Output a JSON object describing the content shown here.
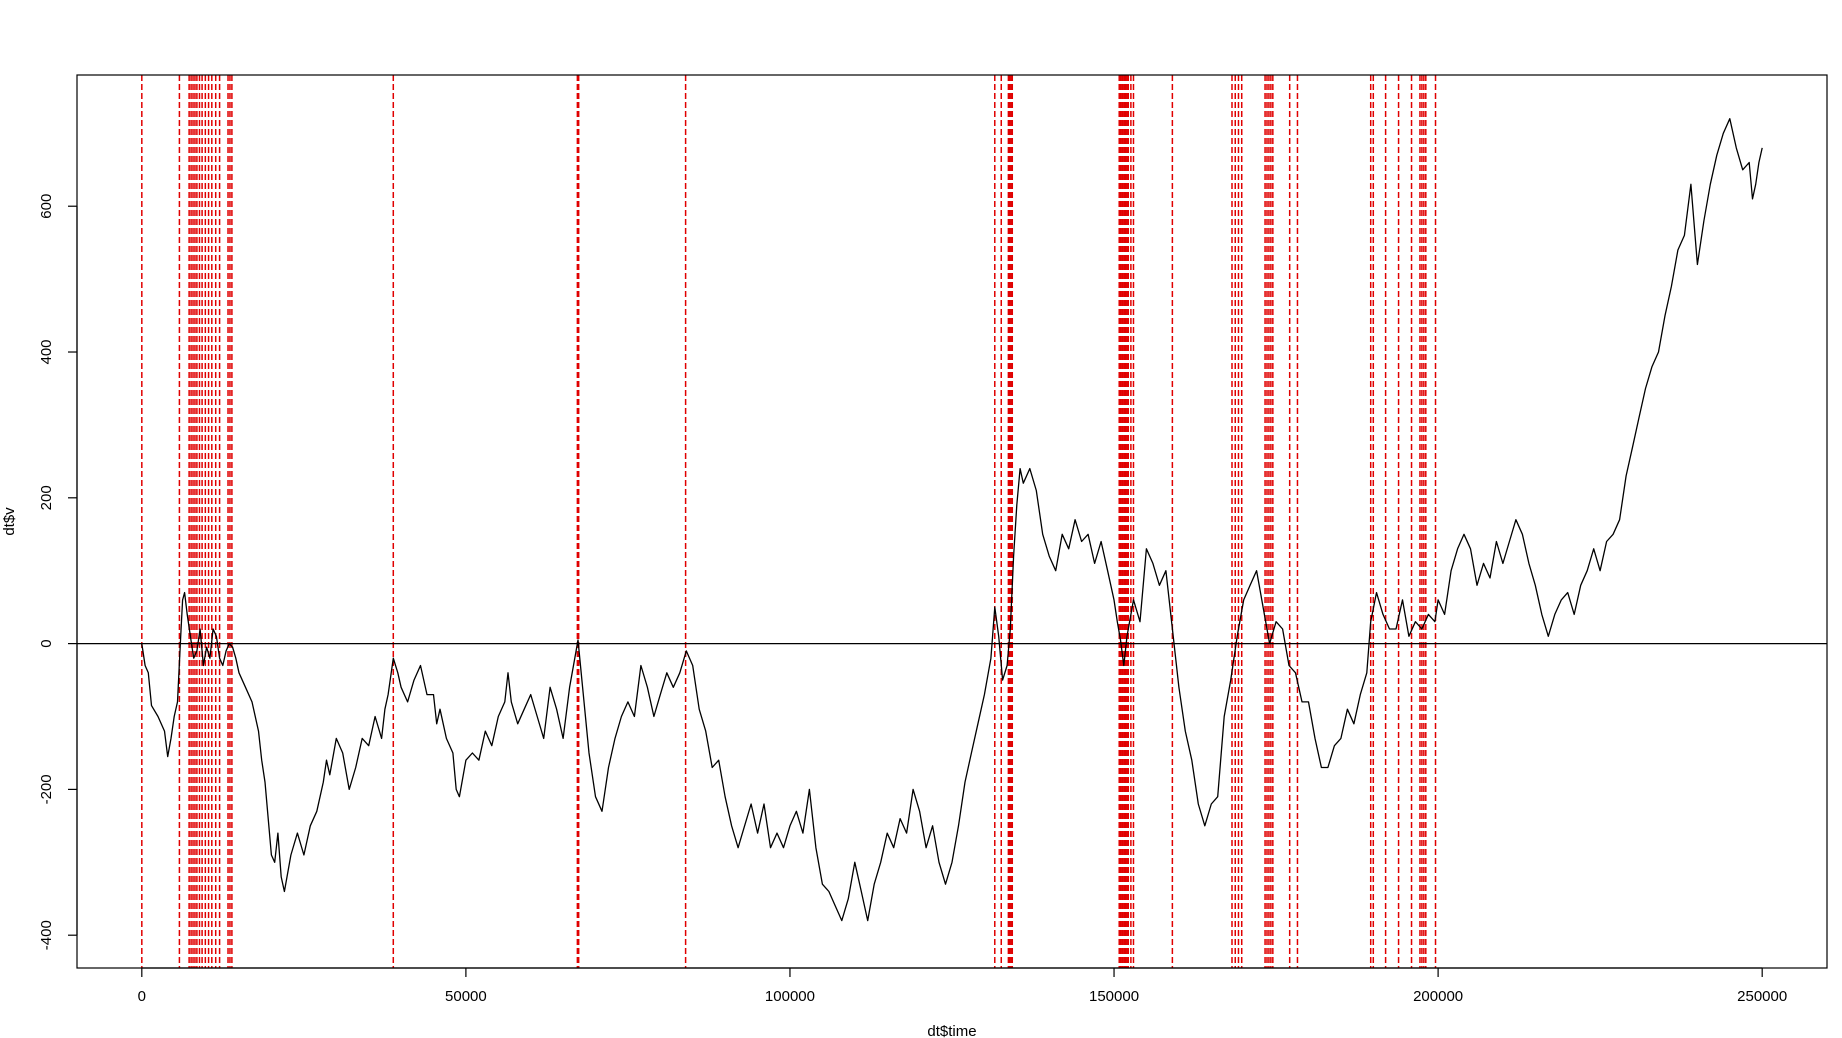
{
  "chart_data": {
    "type": "line",
    "xlabel": "dt$time",
    "ylabel": "dt$v",
    "xlim": [
      -10000,
      260000
    ],
    "ylim": [
      -445,
      780
    ],
    "x_ticks": [
      0,
      50000,
      100000,
      150000,
      200000,
      250000
    ],
    "x_tick_labels": [
      "0",
      "50000",
      "100000",
      "150000",
      "200000",
      "250000"
    ],
    "y_ticks": [
      -400,
      -200,
      0,
      200,
      400,
      600
    ],
    "y_tick_labels": [
      "-400",
      "-200",
      "0",
      "200",
      "400",
      "600"
    ],
    "grid": false,
    "hline": 0,
    "colors": {
      "series": "#000000",
      "vlines": "#e00000",
      "hline": "#000000"
    },
    "vlines_style": "dashed",
    "vlines_x": [
      0,
      5800,
      7300,
      7600,
      7900,
      8200,
      8500,
      8900,
      9300,
      9800,
      10300,
      10800,
      11400,
      12000,
      13300,
      13600,
      13900,
      38800,
      67200,
      67400,
      83900,
      131600,
      132600,
      133700,
      133900,
      134100,
      134300,
      150800,
      151000,
      151200,
      151400,
      151600,
      151800,
      152000,
      152200,
      152600,
      153000,
      159000,
      168200,
      168700,
      169200,
      169700,
      173300,
      173600,
      173900,
      174200,
      174500,
      177100,
      178300,
      189600,
      190000,
      191900,
      193900,
      195900,
      197200,
      197500,
      197800,
      198100,
      199600
    ],
    "series": [
      {
        "values": [
          [
            0,
            0
          ],
          [
            500,
            -30
          ],
          [
            1000,
            -40
          ],
          [
            1500,
            -85
          ],
          [
            2500,
            -100
          ],
          [
            3500,
            -120
          ],
          [
            4000,
            -155
          ],
          [
            4500,
            -130
          ],
          [
            5000,
            -100
          ],
          [
            5500,
            -80
          ],
          [
            6000,
            10
          ],
          [
            6300,
            60
          ],
          [
            6600,
            70
          ],
          [
            7000,
            40
          ],
          [
            7500,
            10
          ],
          [
            8000,
            -20
          ],
          [
            8500,
            -10
          ],
          [
            9000,
            20
          ],
          [
            9500,
            -30
          ],
          [
            10000,
            -5
          ],
          [
            10500,
            -20
          ],
          [
            11000,
            20
          ],
          [
            11500,
            10
          ],
          [
            12000,
            -20
          ],
          [
            12500,
            -30
          ],
          [
            13000,
            -10
          ],
          [
            13500,
            0
          ],
          [
            14000,
            -5
          ],
          [
            14500,
            -20
          ],
          [
            15000,
            -40
          ],
          [
            16000,
            -60
          ],
          [
            17000,
            -80
          ],
          [
            18000,
            -120
          ],
          [
            18500,
            -160
          ],
          [
            19000,
            -190
          ],
          [
            19500,
            -240
          ],
          [
            20000,
            -290
          ],
          [
            20500,
            -300
          ],
          [
            21000,
            -260
          ],
          [
            21500,
            -320
          ],
          [
            22000,
            -340
          ],
          [
            23000,
            -290
          ],
          [
            24000,
            -260
          ],
          [
            25000,
            -290
          ],
          [
            26000,
            -250
          ],
          [
            27000,
            -230
          ],
          [
            28000,
            -190
          ],
          [
            28500,
            -160
          ],
          [
            29000,
            -180
          ],
          [
            30000,
            -130
          ],
          [
            31000,
            -150
          ],
          [
            32000,
            -200
          ],
          [
            33000,
            -170
          ],
          [
            34000,
            -130
          ],
          [
            35000,
            -140
          ],
          [
            36000,
            -100
          ],
          [
            37000,
            -130
          ],
          [
            37500,
            -90
          ],
          [
            38000,
            -70
          ],
          [
            38800,
            -20
          ],
          [
            39500,
            -40
          ],
          [
            40000,
            -60
          ],
          [
            41000,
            -80
          ],
          [
            42000,
            -50
          ],
          [
            43000,
            -30
          ],
          [
            44000,
            -70
          ],
          [
            45000,
            -70
          ],
          [
            45500,
            -110
          ],
          [
            46000,
            -90
          ],
          [
            47000,
            -130
          ],
          [
            48000,
            -150
          ],
          [
            48500,
            -200
          ],
          [
            49000,
            -210
          ],
          [
            50000,
            -160
          ],
          [
            51000,
            -150
          ],
          [
            52000,
            -160
          ],
          [
            53000,
            -120
          ],
          [
            54000,
            -140
          ],
          [
            55000,
            -100
          ],
          [
            56000,
            -80
          ],
          [
            56500,
            -40
          ],
          [
            57000,
            -80
          ],
          [
            58000,
            -110
          ],
          [
            59000,
            -90
          ],
          [
            60000,
            -70
          ],
          [
            61000,
            -100
          ],
          [
            62000,
            -130
          ],
          [
            63000,
            -60
          ],
          [
            64000,
            -90
          ],
          [
            65000,
            -130
          ],
          [
            66000,
            -60
          ],
          [
            67000,
            -10
          ],
          [
            67300,
            5
          ],
          [
            68000,
            -60
          ],
          [
            69000,
            -150
          ],
          [
            70000,
            -210
          ],
          [
            71000,
            -230
          ],
          [
            72000,
            -170
          ],
          [
            73000,
            -130
          ],
          [
            74000,
            -100
          ],
          [
            75000,
            -80
          ],
          [
            76000,
            -100
          ],
          [
            77000,
            -30
          ],
          [
            78000,
            -60
          ],
          [
            79000,
            -100
          ],
          [
            80000,
            -70
          ],
          [
            81000,
            -40
          ],
          [
            82000,
            -60
          ],
          [
            83000,
            -40
          ],
          [
            84000,
            -10
          ],
          [
            85000,
            -30
          ],
          [
            86000,
            -90
          ],
          [
            87000,
            -120
          ],
          [
            88000,
            -170
          ],
          [
            89000,
            -160
          ],
          [
            90000,
            -210
          ],
          [
            91000,
            -250
          ],
          [
            92000,
            -280
          ],
          [
            93000,
            -250
          ],
          [
            94000,
            -220
          ],
          [
            95000,
            -260
          ],
          [
            96000,
            -220
          ],
          [
            97000,
            -280
          ],
          [
            98000,
            -260
          ],
          [
            99000,
            -280
          ],
          [
            100000,
            -250
          ],
          [
            101000,
            -230
          ],
          [
            102000,
            -260
          ],
          [
            103000,
            -200
          ],
          [
            104000,
            -280
          ],
          [
            105000,
            -330
          ],
          [
            106000,
            -340
          ],
          [
            107000,
            -360
          ],
          [
            108000,
            -380
          ],
          [
            109000,
            -350
          ],
          [
            110000,
            -300
          ],
          [
            111000,
            -340
          ],
          [
            112000,
            -380
          ],
          [
            113000,
            -330
          ],
          [
            114000,
            -300
          ],
          [
            115000,
            -260
          ],
          [
            116000,
            -280
          ],
          [
            117000,
            -240
          ],
          [
            118000,
            -260
          ],
          [
            119000,
            -200
          ],
          [
            120000,
            -230
          ],
          [
            121000,
            -280
          ],
          [
            122000,
            -250
          ],
          [
            123000,
            -300
          ],
          [
            124000,
            -330
          ],
          [
            125000,
            -300
          ],
          [
            126000,
            -250
          ],
          [
            127000,
            -190
          ],
          [
            128000,
            -150
          ],
          [
            129000,
            -110
          ],
          [
            130000,
            -70
          ],
          [
            131000,
            -20
          ],
          [
            131600,
            50
          ],
          [
            132200,
            10
          ],
          [
            132800,
            -50
          ],
          [
            133500,
            -30
          ],
          [
            134000,
            20
          ],
          [
            134500,
            120
          ],
          [
            135000,
            190
          ],
          [
            135500,
            240
          ],
          [
            136000,
            220
          ],
          [
            137000,
            240
          ],
          [
            138000,
            210
          ],
          [
            139000,
            150
          ],
          [
            140000,
            120
          ],
          [
            141000,
            100
          ],
          [
            142000,
            150
          ],
          [
            143000,
            130
          ],
          [
            144000,
            170
          ],
          [
            145000,
            140
          ],
          [
            146000,
            150
          ],
          [
            147000,
            110
          ],
          [
            148000,
            140
          ],
          [
            149000,
            100
          ],
          [
            150000,
            60
          ],
          [
            150500,
            30
          ],
          [
            151000,
            5
          ],
          [
            151500,
            -30
          ],
          [
            152000,
            10
          ],
          [
            153000,
            60
          ],
          [
            154000,
            30
          ],
          [
            155000,
            130
          ],
          [
            156000,
            110
          ],
          [
            157000,
            80
          ],
          [
            158000,
            100
          ],
          [
            159000,
            20
          ],
          [
            160000,
            -60
          ],
          [
            161000,
            -120
          ],
          [
            162000,
            -160
          ],
          [
            163000,
            -220
          ],
          [
            164000,
            -250
          ],
          [
            165000,
            -220
          ],
          [
            166000,
            -210
          ],
          [
            167000,
            -100
          ],
          [
            168000,
            -50
          ],
          [
            169000,
            10
          ],
          [
            170000,
            60
          ],
          [
            171000,
            80
          ],
          [
            172000,
            100
          ],
          [
            173000,
            50
          ],
          [
            174000,
            0
          ],
          [
            175000,
            30
          ],
          [
            176000,
            20
          ],
          [
            177000,
            -30
          ],
          [
            178000,
            -40
          ],
          [
            179000,
            -80
          ],
          [
            180000,
            -80
          ],
          [
            181000,
            -130
          ],
          [
            182000,
            -170
          ],
          [
            183000,
            -170
          ],
          [
            184000,
            -140
          ],
          [
            185000,
            -130
          ],
          [
            186000,
            -90
          ],
          [
            187000,
            -110
          ],
          [
            188000,
            -70
          ],
          [
            189000,
            -40
          ],
          [
            189600,
            30
          ],
          [
            190500,
            70
          ],
          [
            191500,
            40
          ],
          [
            192500,
            20
          ],
          [
            193500,
            20
          ],
          [
            194500,
            60
          ],
          [
            195500,
            10
          ],
          [
            196500,
            30
          ],
          [
            197500,
            20
          ],
          [
            198500,
            40
          ],
          [
            199500,
            30
          ],
          [
            200000,
            60
          ],
          [
            201000,
            40
          ],
          [
            202000,
            100
          ],
          [
            203000,
            130
          ],
          [
            204000,
            150
          ],
          [
            205000,
            130
          ],
          [
            206000,
            80
          ],
          [
            207000,
            110
          ],
          [
            208000,
            90
          ],
          [
            209000,
            140
          ],
          [
            210000,
            110
          ],
          [
            211000,
            140
          ],
          [
            212000,
            170
          ],
          [
            213000,
            150
          ],
          [
            214000,
            110
          ],
          [
            215000,
            80
          ],
          [
            216000,
            40
          ],
          [
            217000,
            10
          ],
          [
            218000,
            40
          ],
          [
            219000,
            60
          ],
          [
            220000,
            70
          ],
          [
            221000,
            40
          ],
          [
            222000,
            80
          ],
          [
            223000,
            100
          ],
          [
            224000,
            130
          ],
          [
            225000,
            100
          ],
          [
            226000,
            140
          ],
          [
            227000,
            150
          ],
          [
            228000,
            170
          ],
          [
            229000,
            230
          ],
          [
            230000,
            270
          ],
          [
            231000,
            310
          ],
          [
            232000,
            350
          ],
          [
            233000,
            380
          ],
          [
            234000,
            400
          ],
          [
            235000,
            450
          ],
          [
            236000,
            490
          ],
          [
            237000,
            540
          ],
          [
            238000,
            560
          ],
          [
            239000,
            630
          ],
          [
            240000,
            520
          ],
          [
            241000,
            580
          ],
          [
            242000,
            630
          ],
          [
            243000,
            670
          ],
          [
            244000,
            700
          ],
          [
            245000,
            720
          ],
          [
            246000,
            680
          ],
          [
            247000,
            650
          ],
          [
            248000,
            660
          ],
          [
            248500,
            610
          ],
          [
            249000,
            630
          ],
          [
            249500,
            660
          ],
          [
            250000,
            680
          ]
        ]
      }
    ]
  }
}
